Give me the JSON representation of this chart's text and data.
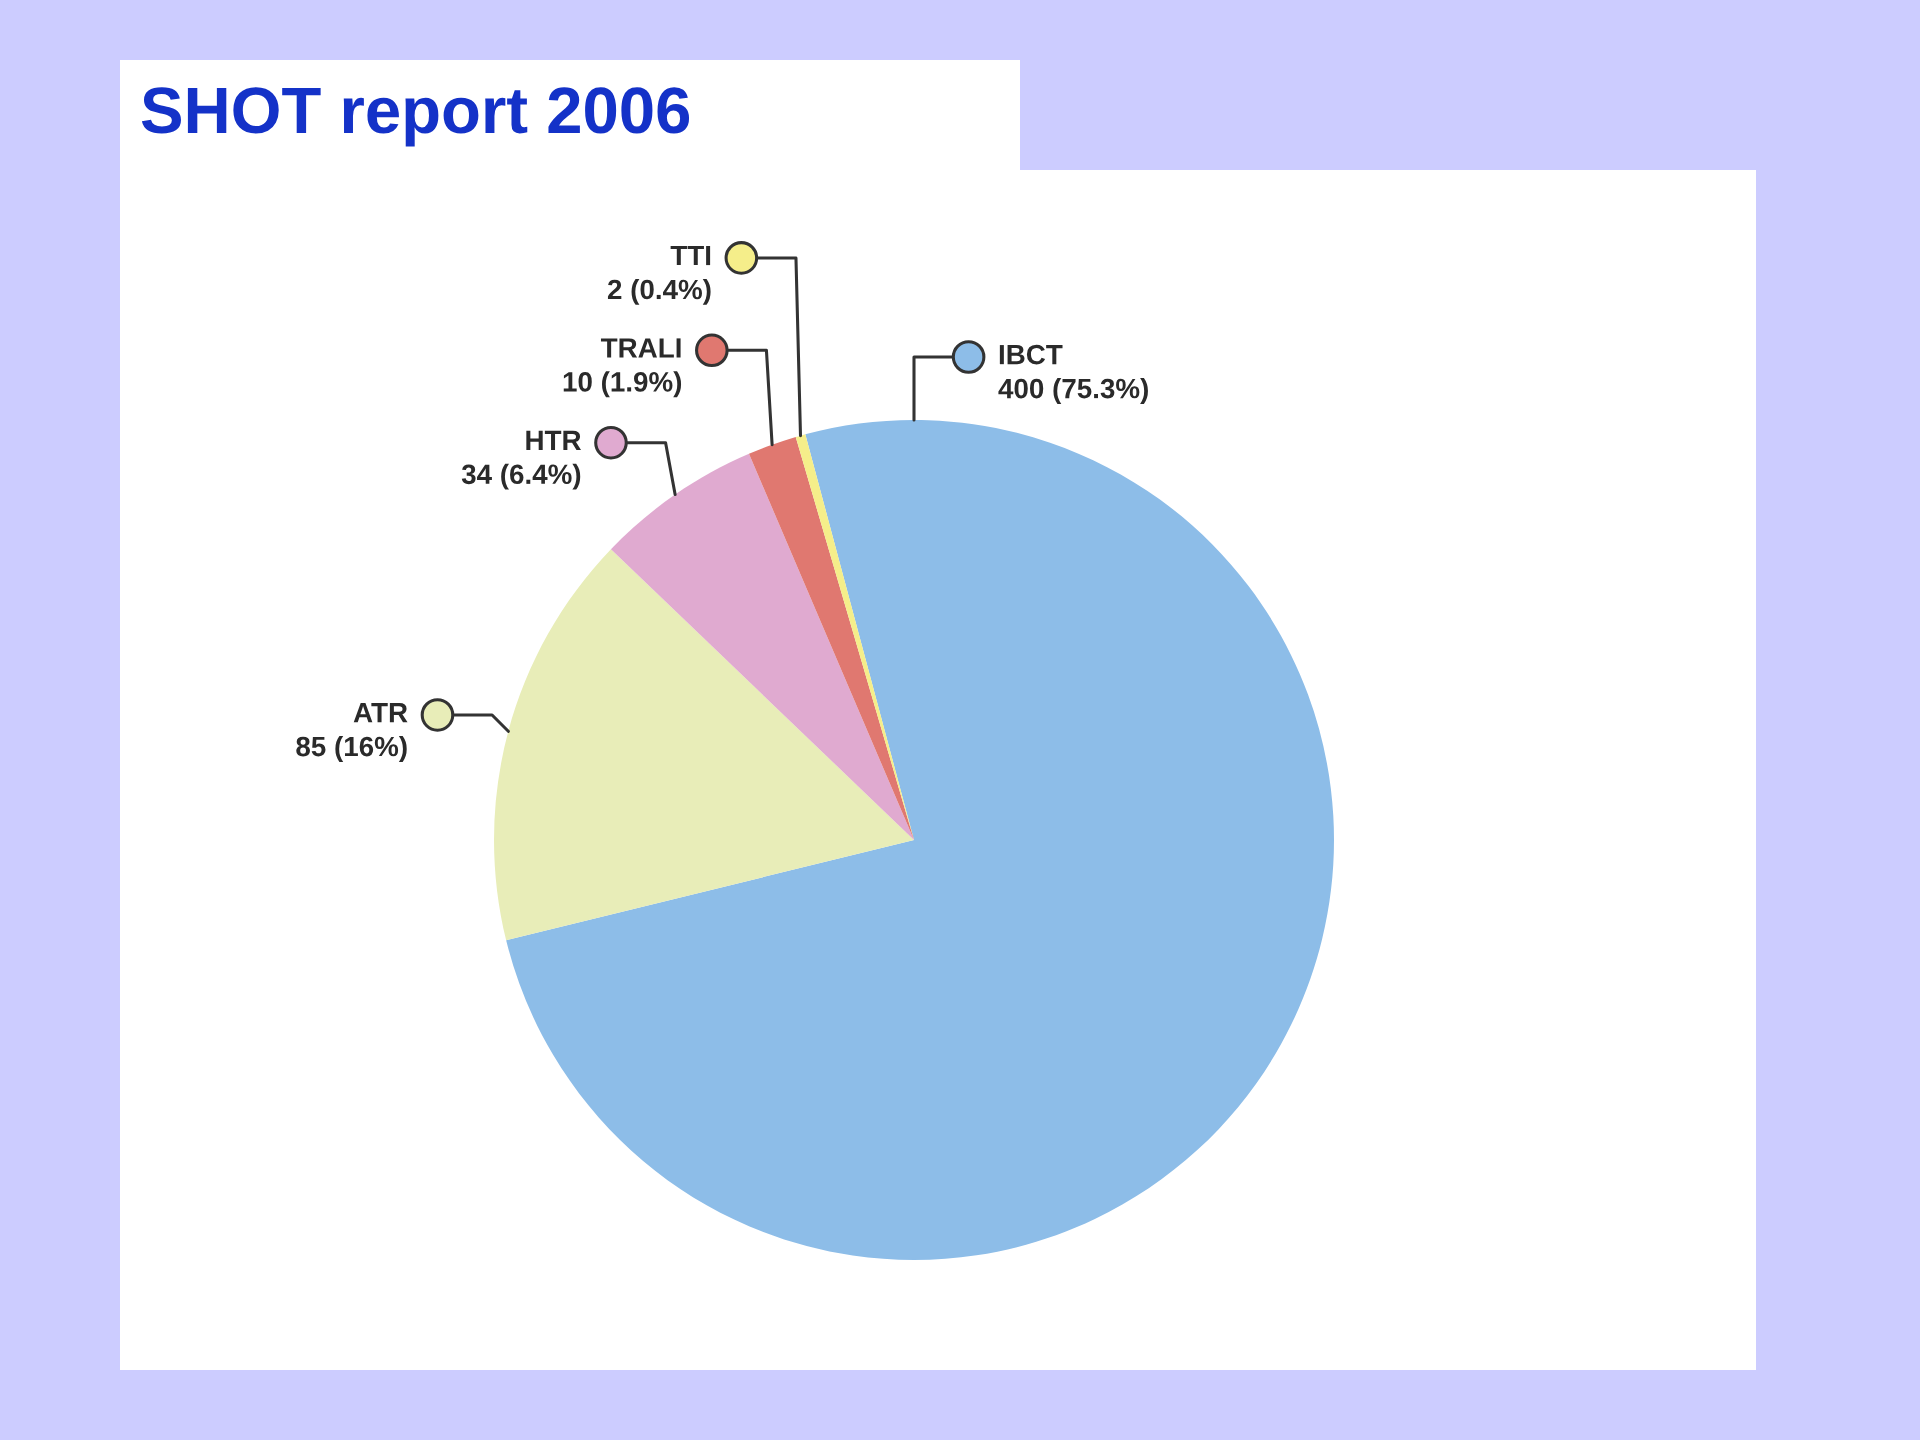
{
  "chart_data": {
    "type": "pie",
    "title": "SHOT report 2006",
    "categories": [
      "IBCT",
      "ATR",
      "HTR",
      "TRALI",
      "TTI"
    ],
    "values": [
      400,
      85,
      34,
      10,
      2
    ],
    "colors": [
      "#8dbde8",
      "#e8edb8",
      "#e0aad0",
      "#e07870",
      "#f5ee8a"
    ],
    "value_labels": [
      "400 (75.3%)",
      "85 (16%)",
      "34 (6.4%)",
      "10 (1.9%)",
      "2 (0.4%)"
    ],
    "legend": "top left"
  }
}
